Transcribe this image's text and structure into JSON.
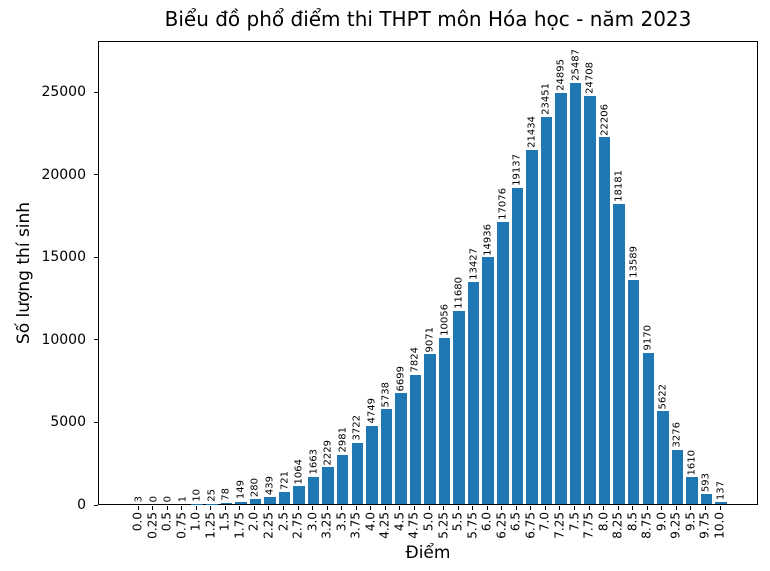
{
  "chart_data": {
    "type": "bar",
    "title": "Biểu đồ phổ điểm thi THPT môn Hóa học - năm 2023",
    "xlabel": "Điểm",
    "ylabel": "Số lượng thí sinh",
    "categories": [
      "0.0",
      "0.25",
      "0.5",
      "0.75",
      "1.0",
      "1.25",
      "1.5",
      "1.75",
      "2.0",
      "2.25",
      "2.5",
      "2.75",
      "3.0",
      "3.25",
      "3.5",
      "3.75",
      "4.0",
      "4.25",
      "4.5",
      "4.75",
      "5.0",
      "5.25",
      "5.5",
      "5.75",
      "6.0",
      "6.25",
      "6.5",
      "6.75",
      "7.0",
      "7.25",
      "7.5",
      "7.75",
      "8.0",
      "8.25",
      "8.5",
      "8.75",
      "9.0",
      "9.25",
      "9.5",
      "9.75",
      "10.0"
    ],
    "values": [
      3,
      0,
      0,
      1,
      10,
      25,
      78,
      149,
      280,
      439,
      721,
      1064,
      1663,
      2229,
      2981,
      3722,
      4749,
      5738,
      6699,
      7824,
      9071,
      10056,
      11680,
      13427,
      14936,
      17076,
      19137,
      21434,
      23451,
      24895,
      25487,
      24708,
      22206,
      18181,
      13589,
      9170,
      5622,
      3276,
      1610,
      593,
      137
    ],
    "yticks": [
      0,
      5000,
      10000,
      15000,
      20000,
      25000
    ],
    "ylim": [
      0,
      28100
    ],
    "bar_labels_shown": true,
    "grid": false,
    "legend": "none",
    "bar_color": "#1f77b4",
    "text_color": "#000000"
  }
}
